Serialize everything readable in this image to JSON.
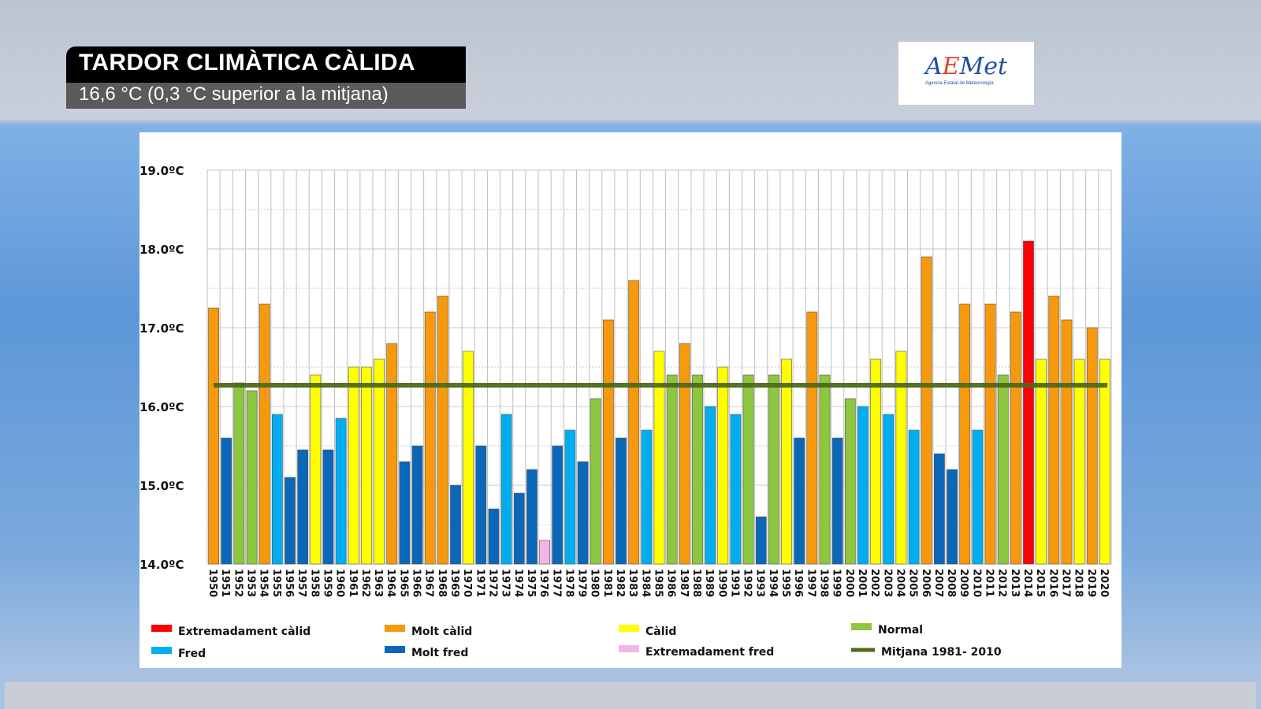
{
  "header": {
    "title": "TARDOR CLIMÀTICA CÀLIDA",
    "subtitle": "16,6 °C (0,3 °C superior a la mitjana)"
  },
  "logo": {
    "name": "AEMet",
    "tagline": "Agencia Estatal de Meteorología"
  },
  "chart_data": {
    "type": "bar",
    "ylabel": "",
    "xlabel": "",
    "ylim": [
      14.0,
      19.0
    ],
    "yticks": [
      "14.0ºC",
      "15.0ºC",
      "16.0ºC",
      "17.0ºC",
      "18.0ºC",
      "19.0ºC"
    ],
    "grid": true,
    "categories": [
      "1950",
      "1951",
      "1952",
      "1953",
      "1954",
      "1955",
      "1956",
      "1957",
      "1958",
      "1959",
      "1960",
      "1961",
      "1962",
      "1963",
      "1964",
      "1965",
      "1966",
      "1967",
      "1968",
      "1969",
      "1970",
      "1971",
      "1972",
      "1973",
      "1974",
      "1975",
      "1976",
      "1977",
      "1978",
      "1979",
      "1980",
      "1981",
      "1982",
      "1983",
      "1984",
      "1985",
      "1986",
      "1987",
      "1988",
      "1989",
      "1990",
      "1991",
      "1992",
      "1993",
      "1994",
      "1995",
      "1996",
      "1997",
      "1998",
      "1999",
      "2000",
      "2001",
      "2002",
      "2003",
      "2004",
      "2005",
      "2006",
      "2007",
      "2008",
      "2009",
      "2010",
      "2011",
      "2012",
      "2013",
      "2014",
      "2015",
      "2016",
      "2017",
      "2018",
      "2019",
      "2020"
    ],
    "values": [
      17.25,
      15.6,
      16.3,
      16.2,
      17.3,
      15.9,
      15.1,
      15.45,
      16.4,
      15.45,
      15.85,
      16.5,
      16.5,
      16.6,
      16.8,
      15.3,
      15.5,
      17.2,
      17.4,
      15.0,
      16.7,
      15.5,
      14.7,
      15.9,
      14.9,
      15.2,
      14.3,
      15.5,
      15.7,
      15.3,
      16.1,
      17.1,
      15.6,
      17.6,
      15.7,
      16.7,
      16.4,
      16.8,
      16.4,
      16.0,
      16.5,
      15.9,
      16.4,
      14.6,
      16.4,
      16.6,
      15.6,
      17.2,
      16.4,
      15.6,
      16.1,
      16.0,
      16.6,
      15.9,
      16.7,
      15.7,
      17.9,
      15.4,
      15.2,
      17.3,
      15.7,
      17.3,
      16.4,
      17.2,
      18.1,
      16.6,
      17.4,
      17.1,
      16.6,
      17.0,
      16.6
    ],
    "classes": [
      "mc",
      "mf",
      "n",
      "n",
      "mc",
      "f",
      "mf",
      "mf",
      "c",
      "mf",
      "f",
      "c",
      "c",
      "c",
      "mc",
      "mf",
      "mf",
      "mc",
      "mc",
      "mf",
      "c",
      "mf",
      "mf",
      "f",
      "mf",
      "mf",
      "ef",
      "mf",
      "f",
      "mf",
      "n",
      "mc",
      "mf",
      "mc",
      "f",
      "c",
      "n",
      "mc",
      "n",
      "f",
      "c",
      "f",
      "n",
      "mf",
      "n",
      "c",
      "mf",
      "mc",
      "n",
      "mf",
      "n",
      "f",
      "c",
      "f",
      "c",
      "f",
      "mc",
      "mf",
      "mf",
      "mc",
      "f",
      "mc",
      "n",
      "mc",
      "ec",
      "c",
      "mc",
      "mc",
      "c",
      "mc",
      "c"
    ],
    "mean": {
      "label": "Mitjana 1981- 2010",
      "value": 16.27,
      "color": "#4f6a1c"
    },
    "legend_placement": "bottom",
    "legend": [
      {
        "key": "ec",
        "label": "Extremadament càlid",
        "color": "#ff0000"
      },
      {
        "key": "mc",
        "label": "Molt càlid",
        "color": "#f7990c"
      },
      {
        "key": "c",
        "label": "Càlid",
        "color": "#ffff00"
      },
      {
        "key": "n",
        "label": "Normal",
        "color": "#8dc63f"
      },
      {
        "key": "f",
        "label": "Fred",
        "color": "#00aeef"
      },
      {
        "key": "mf",
        "label": "Molt fred",
        "color": "#0b67b8"
      },
      {
        "key": "ef",
        "label": "Extremadament fred",
        "color": "#f2b6e6"
      }
    ]
  }
}
